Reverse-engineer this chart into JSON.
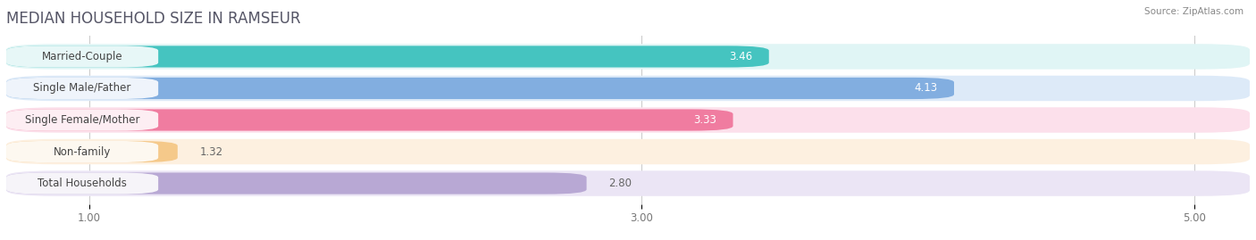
{
  "title": "MEDIAN HOUSEHOLD SIZE IN RAMSEUR",
  "source": "Source: ZipAtlas.com",
  "categories": [
    "Married-Couple",
    "Single Male/Father",
    "Single Female/Mother",
    "Non-family",
    "Total Households"
  ],
  "values": [
    3.46,
    4.13,
    3.33,
    1.32,
    2.8
  ],
  "bar_colors": [
    "#45c4c0",
    "#82aee0",
    "#f07ca0",
    "#f5c98a",
    "#b8a8d4"
  ],
  "bar_bg_colors": [
    "#e0f5f5",
    "#ddeaf8",
    "#fce0eb",
    "#fdf0e0",
    "#ebe5f5"
  ],
  "xlim_start": 0.7,
  "xlim_end": 5.2,
  "xticks": [
    1.0,
    3.0,
    5.0
  ],
  "title_fontsize": 12,
  "label_fontsize": 8.5,
  "value_fontsize": 8.5,
  "background_color": "#ffffff"
}
